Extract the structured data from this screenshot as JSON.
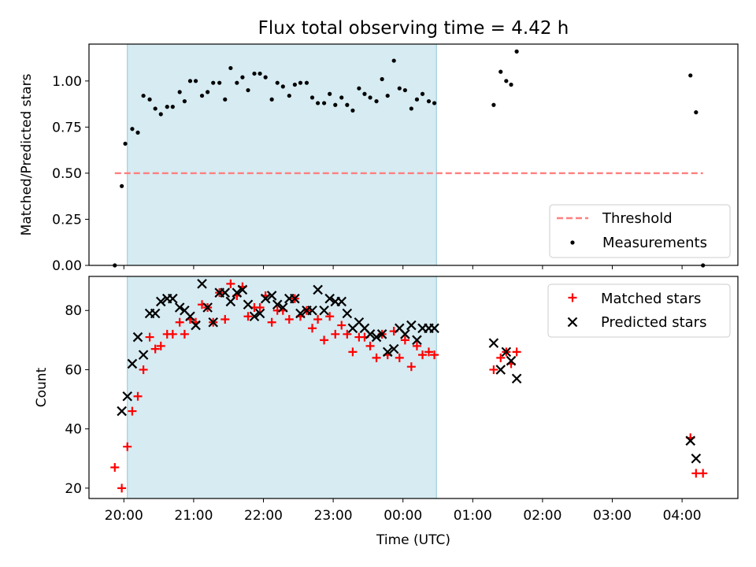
{
  "figure_title": "Flux total observing time = 4.42 h",
  "chart_data": [
    {
      "type": "scatter",
      "ylabel": "Matched/Predicted stars",
      "xlim": [
        19.5,
        28.8
      ],
      "ylim": [
        0.0,
        1.2
      ],
      "yticks": [
        "0.00",
        "0.25",
        "0.50",
        "0.75",
        "1.00"
      ],
      "shaded_span": [
        20.05,
        24.48
      ],
      "threshold": {
        "name": "Threshold",
        "y": 0.5,
        "x": [
          19.87,
          28.3
        ],
        "color": "#ff7f7f"
      },
      "series": [
        {
          "name": "Measurements",
          "color": "#000000",
          "x": [
            19.87,
            19.97,
            20.02,
            20.12,
            20.2,
            20.28,
            20.37,
            20.45,
            20.53,
            20.62,
            20.7,
            20.8,
            20.87,
            20.95,
            21.03,
            21.12,
            21.2,
            21.28,
            21.37,
            21.45,
            21.53,
            21.62,
            21.7,
            21.78,
            21.87,
            21.95,
            22.03,
            22.12,
            22.2,
            22.28,
            22.37,
            22.45,
            22.53,
            22.62,
            22.7,
            22.78,
            22.87,
            22.95,
            23.03,
            23.12,
            23.2,
            23.28,
            23.37,
            23.45,
            23.53,
            23.62,
            23.7,
            23.78,
            23.87,
            23.95,
            24.03,
            24.12,
            24.2,
            24.28,
            24.37,
            24.45,
            25.3,
            25.4,
            25.48,
            25.55,
            25.63,
            28.12,
            28.2,
            28.3
          ],
          "y": [
            0.0,
            0.43,
            0.66,
            0.74,
            0.72,
            0.92,
            0.9,
            0.85,
            0.82,
            0.86,
            0.86,
            0.94,
            0.89,
            1.0,
            1.0,
            0.92,
            0.94,
            0.99,
            0.99,
            0.9,
            1.07,
            0.99,
            1.02,
            0.95,
            1.04,
            1.04,
            1.02,
            0.9,
            0.99,
            0.97,
            0.92,
            0.98,
            0.99,
            0.99,
            0.91,
            0.88,
            0.88,
            0.93,
            0.87,
            0.91,
            0.87,
            0.84,
            0.96,
            0.93,
            0.91,
            0.89,
            1.01,
            0.92,
            1.11,
            0.96,
            0.95,
            0.85,
            0.9,
            0.93,
            0.89,
            0.88,
            0.87,
            1.05,
            1.0,
            0.98,
            1.16,
            1.03,
            0.83,
            0.0
          ]
        }
      ],
      "legend": {
        "position": "lower right",
        "entries": [
          "Threshold",
          "Measurements"
        ]
      },
      "grid": false
    },
    {
      "type": "scatter",
      "xlabel": "Time (UTC)",
      "ylabel": "Count",
      "xlim": [
        19.5,
        28.8
      ],
      "ylim": [
        16.5,
        91.5
      ],
      "xticks": [
        {
          "value": 20,
          "label": "20:00"
        },
        {
          "value": 21,
          "label": "21:00"
        },
        {
          "value": 22,
          "label": "22:00"
        },
        {
          "value": 23,
          "label": "23:00"
        },
        {
          "value": 24,
          "label": "00:00"
        },
        {
          "value": 25,
          "label": "01:00"
        },
        {
          "value": 26,
          "label": "02:00"
        },
        {
          "value": 27,
          "label": "03:00"
        },
        {
          "value": 28,
          "label": "04:00"
        }
      ],
      "yticks": [
        "20",
        "40",
        "60",
        "80"
      ],
      "shaded_span": [
        20.05,
        24.48
      ],
      "series": [
        {
          "name": "Matched stars",
          "marker": "plus",
          "color": "#ff0000",
          "x": [
            19.87,
            19.97,
            20.05,
            20.12,
            20.2,
            20.28,
            20.37,
            20.45,
            20.53,
            20.62,
            20.7,
            20.8,
            20.87,
            20.95,
            21.03,
            21.12,
            21.2,
            21.28,
            21.37,
            21.45,
            21.53,
            21.62,
            21.7,
            21.78,
            21.87,
            21.95,
            22.03,
            22.12,
            22.2,
            22.28,
            22.37,
            22.45,
            22.53,
            22.62,
            22.7,
            22.78,
            22.87,
            22.95,
            23.03,
            23.12,
            23.2,
            23.28,
            23.37,
            23.45,
            23.53,
            23.62,
            23.7,
            23.78,
            23.87,
            23.95,
            24.03,
            24.12,
            24.2,
            24.28,
            24.37,
            24.45,
            25.3,
            25.4,
            25.48,
            25.55,
            25.63,
            28.12,
            28.2,
            28.3
          ],
          "y": [
            27,
            20,
            34,
            46,
            51,
            60,
            71,
            67,
            68,
            72,
            72,
            76,
            72,
            77,
            76,
            82,
            81,
            76,
            86,
            77,
            89,
            85,
            88,
            78,
            81,
            81,
            85,
            76,
            80,
            80,
            77,
            84,
            78,
            80,
            74,
            77,
            70,
            78,
            72,
            75,
            72,
            66,
            71,
            71,
            68,
            64,
            72,
            65,
            73,
            64,
            70,
            61,
            68,
            65,
            66,
            65,
            60,
            64,
            66,
            62,
            66,
            37,
            25,
            25
          ]
        },
        {
          "name": "Predicted stars",
          "marker": "x",
          "color": "#000000",
          "x": [
            19.97,
            20.05,
            20.12,
            20.2,
            20.28,
            20.37,
            20.45,
            20.53,
            20.62,
            20.7,
            20.8,
            20.87,
            20.95,
            21.03,
            21.12,
            21.2,
            21.28,
            21.37,
            21.45,
            21.53,
            21.62,
            21.7,
            21.78,
            21.87,
            21.95,
            22.03,
            22.12,
            22.2,
            22.28,
            22.37,
            22.45,
            22.53,
            22.62,
            22.7,
            22.78,
            22.87,
            22.95,
            23.03,
            23.12,
            23.2,
            23.28,
            23.37,
            23.45,
            23.53,
            23.62,
            23.7,
            23.78,
            23.87,
            23.95,
            24.03,
            24.12,
            24.2,
            24.28,
            24.37,
            24.45,
            25.3,
            25.4,
            25.48,
            25.55,
            25.63,
            28.12,
            28.2
          ],
          "y": [
            46,
            51,
            62,
            71,
            65,
            79,
            79,
            83,
            84,
            84,
            81,
            80,
            78,
            75,
            89,
            81,
            76,
            86,
            86,
            83,
            86,
            87,
            82,
            78,
            79,
            84,
            85,
            82,
            81,
            84,
            84,
            79,
            80,
            80,
            87,
            80,
            84,
            83,
            83,
            79,
            74,
            76,
            74,
            72,
            71,
            72,
            66,
            67,
            74,
            72,
            75,
            70,
            74,
            74,
            74,
            69,
            60,
            66,
            63,
            57,
            36,
            30
          ]
        }
      ],
      "legend": {
        "position": "upper right",
        "entries": [
          "Matched stars",
          "Predicted stars"
        ]
      },
      "grid": false
    }
  ]
}
